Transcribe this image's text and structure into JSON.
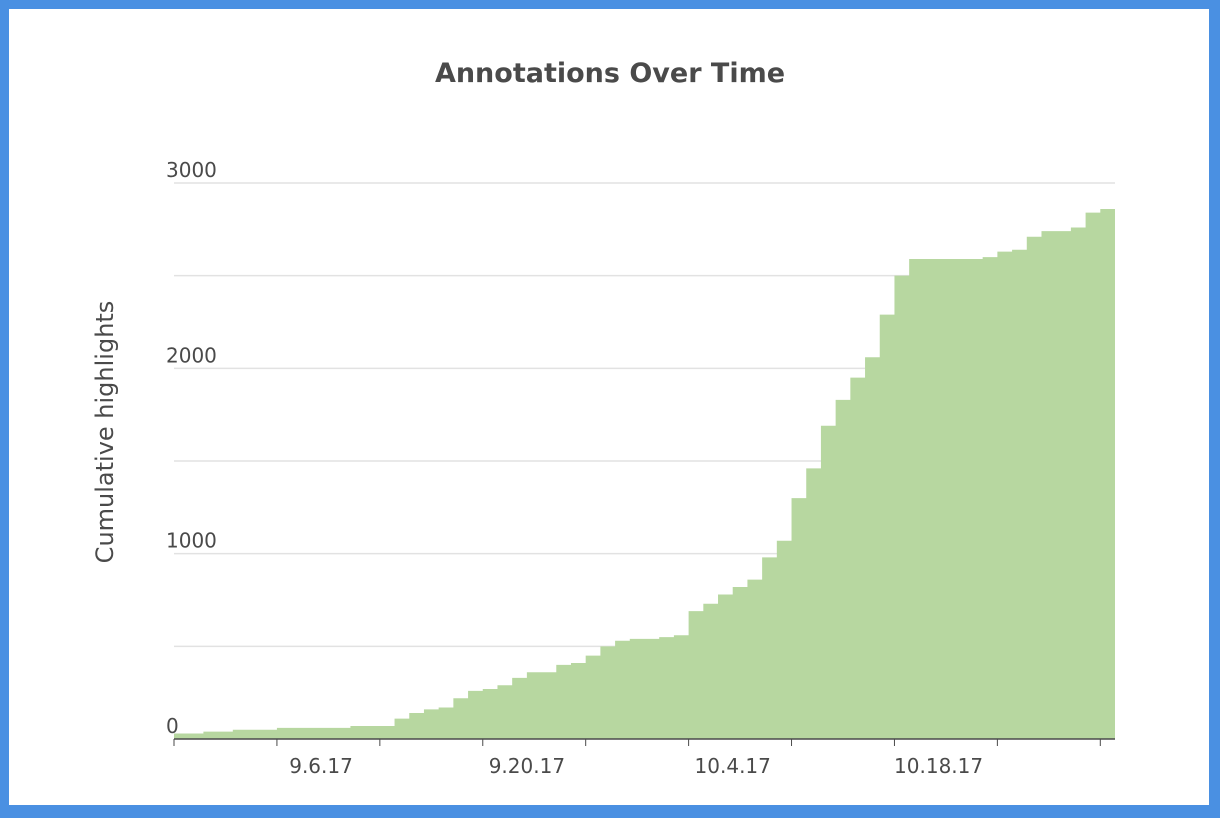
{
  "chart_data": {
    "type": "area",
    "title": "Annotations Over Time",
    "xlabel": "",
    "ylabel": "Cumulative highlights",
    "x_tick_labels": [
      "9.6.17",
      "9.20.17",
      "10.4.17",
      "10.18.17"
    ],
    "y_tick_labels": [
      "0",
      "1000",
      "2000",
      "3000"
    ],
    "ylim": [
      0,
      3000
    ],
    "xlim": [
      "2017-08-27",
      "2017-10-30"
    ],
    "grid": true,
    "colors": {
      "fill": "#b7d7a0",
      "grid": "#e2e2e2",
      "axis": "#4a4a4a",
      "frame": "#4a90e2"
    },
    "series": [
      {
        "x": [
          "2017-08-27",
          "2017-08-28",
          "2017-08-29",
          "2017-08-30",
          "2017-08-31",
          "2017-09-01",
          "2017-09-02",
          "2017-09-03",
          "2017-09-04",
          "2017-09-05",
          "2017-09-06",
          "2017-09-07",
          "2017-09-08",
          "2017-09-09",
          "2017-09-10",
          "2017-09-11",
          "2017-09-12",
          "2017-09-13",
          "2017-09-14",
          "2017-09-15",
          "2017-09-16",
          "2017-09-17",
          "2017-09-18",
          "2017-09-19",
          "2017-09-20",
          "2017-09-21",
          "2017-09-22",
          "2017-09-23",
          "2017-09-24",
          "2017-09-25",
          "2017-09-26",
          "2017-09-27",
          "2017-09-28",
          "2017-09-29",
          "2017-09-30",
          "2017-10-01",
          "2017-10-02",
          "2017-10-03",
          "2017-10-04",
          "2017-10-05",
          "2017-10-06",
          "2017-10-07",
          "2017-10-08",
          "2017-10-09",
          "2017-10-10",
          "2017-10-11",
          "2017-10-12",
          "2017-10-13",
          "2017-10-14",
          "2017-10-15",
          "2017-10-16",
          "2017-10-17",
          "2017-10-18",
          "2017-10-19",
          "2017-10-20",
          "2017-10-21",
          "2017-10-22",
          "2017-10-23",
          "2017-10-24",
          "2017-10-25",
          "2017-10-26",
          "2017-10-27",
          "2017-10-28",
          "2017-10-29"
        ],
        "values": [
          30,
          30,
          40,
          40,
          50,
          50,
          50,
          60,
          60,
          60,
          60,
          60,
          70,
          70,
          70,
          110,
          140,
          160,
          170,
          220,
          260,
          270,
          290,
          330,
          360,
          360,
          400,
          410,
          450,
          500,
          530,
          540,
          540,
          550,
          560,
          690,
          730,
          780,
          820,
          860,
          980,
          1070,
          1300,
          1460,
          1690,
          1830,
          1950,
          2060,
          2290,
          2500,
          2590,
          2590,
          2590,
          2590,
          2590,
          2600,
          2630,
          2640,
          2710,
          2740,
          2740,
          2760,
          2840,
          2860
        ]
      }
    ]
  }
}
